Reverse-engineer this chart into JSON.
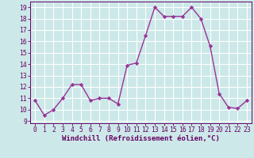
{
  "x": [
    0,
    1,
    2,
    3,
    4,
    5,
    6,
    7,
    8,
    9,
    10,
    11,
    12,
    13,
    14,
    15,
    16,
    17,
    18,
    19,
    20,
    21,
    22,
    23
  ],
  "y": [
    10.8,
    9.5,
    10.0,
    11.0,
    12.2,
    12.2,
    10.8,
    11.0,
    11.0,
    10.5,
    13.9,
    14.1,
    16.5,
    19.0,
    18.2,
    18.2,
    18.2,
    19.0,
    18.0,
    15.6,
    11.4,
    10.2,
    10.1,
    10.8
  ],
  "line_color": "#993399",
  "marker": "D",
  "marker_size": 2.2,
  "bg_color": "#cce8e8",
  "grid_color": "#ffffff",
  "xlabel": "Windchill (Refroidissement éolien,°C)",
  "xlabel_fontsize": 6.5,
  "yticks": [
    9,
    10,
    11,
    12,
    13,
    14,
    15,
    16,
    17,
    18,
    19
  ],
  "xticks": [
    0,
    1,
    2,
    3,
    4,
    5,
    6,
    7,
    8,
    9,
    10,
    11,
    12,
    13,
    14,
    15,
    16,
    17,
    18,
    19,
    20,
    21,
    22,
    23
  ],
  "xlim": [
    -0.5,
    23.5
  ],
  "ylim": [
    8.8,
    19.5
  ],
  "tick_fontsize": 5.8,
  "line_width": 1.0
}
